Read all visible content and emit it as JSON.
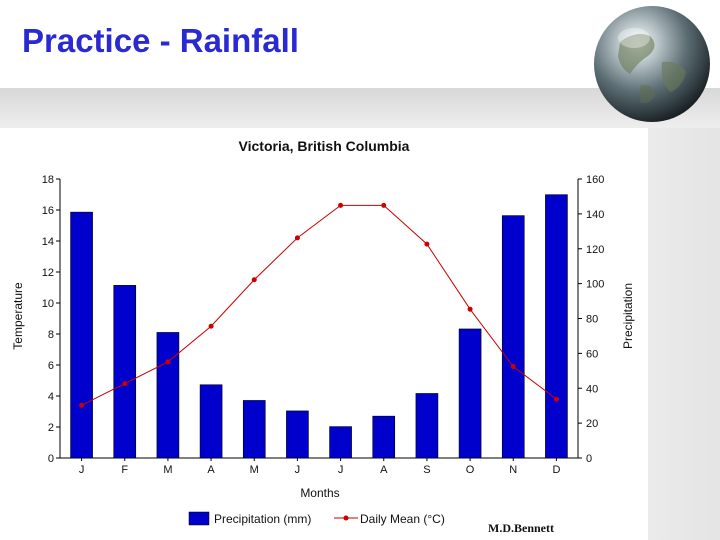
{
  "slide": {
    "title": "Practice - Rainfall",
    "watermark": "M.D.Bennett"
  },
  "colors": {
    "title": "#2a2ad2",
    "bar": "#0000cc",
    "line": "#cc0000"
  },
  "chart_data": {
    "type": "bar",
    "title": "Victoria, British Columbia",
    "xlabel": "Months",
    "categories": [
      "J",
      "F",
      "M",
      "A",
      "M",
      "J",
      "J",
      "A",
      "S",
      "O",
      "N",
      "D"
    ],
    "series": [
      {
        "name": "Precipitation (mm)",
        "type": "bar",
        "axis": "right",
        "values": [
          141,
          99,
          72,
          42,
          33,
          27,
          18,
          24,
          37,
          74,
          139,
          151
        ]
      },
      {
        "name": "Daily Mean (°C)",
        "type": "line",
        "axis": "left",
        "values": [
          3.4,
          4.8,
          6.2,
          8.5,
          11.5,
          14.2,
          16.3,
          16.3,
          13.8,
          9.6,
          5.9,
          3.8
        ]
      }
    ],
    "y_left": {
      "label": "Temperature",
      "ylim": [
        0,
        18
      ],
      "ticks": [
        "0",
        "2",
        "4",
        "6",
        "8",
        "10",
        "12",
        "14",
        "16",
        "18"
      ]
    },
    "y_right": {
      "label": "Precipitation",
      "ylim": [
        0,
        160
      ],
      "ticks": [
        "0",
        "20",
        "40",
        "60",
        "80",
        "100",
        "120",
        "140",
        "160"
      ]
    },
    "legend": [
      "Precipitation (mm)",
      "Daily Mean (°C)"
    ],
    "legend_position": "bottom-center"
  }
}
